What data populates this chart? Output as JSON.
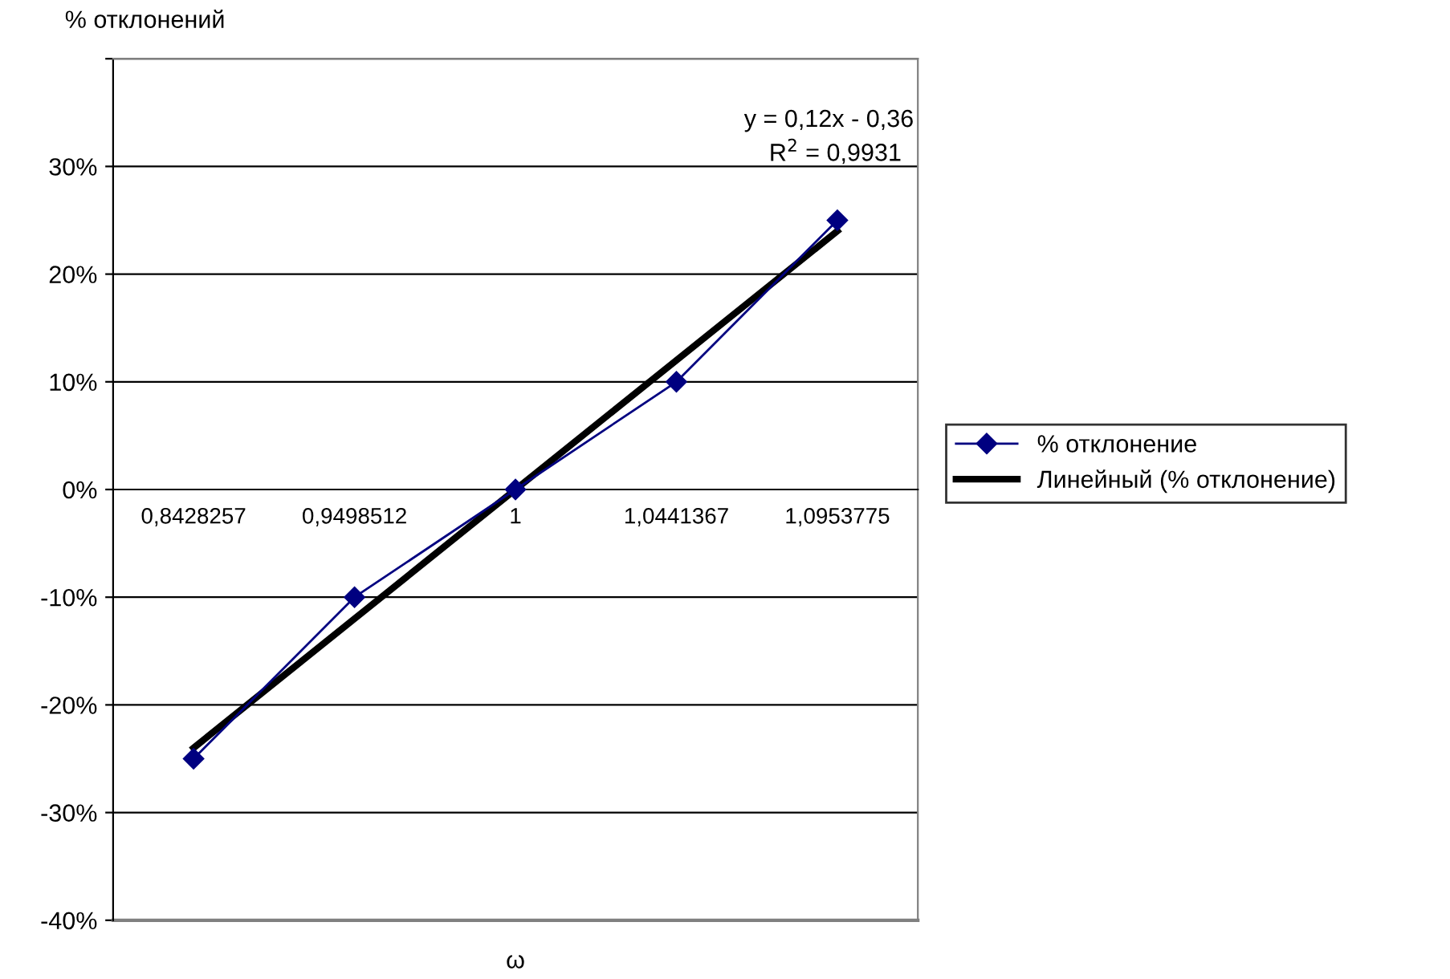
{
  "chart_data": {
    "type": "line",
    "xlabel": "ω",
    "ylabel": "% отклонений",
    "categories": [
      "0,8428257",
      "0,9498512",
      "1",
      "1,0441367",
      "1,0953775"
    ],
    "series": [
      {
        "name": "% отклонение",
        "color": "#000080",
        "values": [
          -25,
          -10,
          0,
          10,
          25
        ],
        "marker": "diamond",
        "line_style": "solid"
      },
      {
        "name": "Линейный (% отклонение)",
        "color": "#000000",
        "type": "line",
        "values": [
          -24,
          -12,
          0,
          12,
          24
        ],
        "marker": "none",
        "line_style": "solid"
      }
    ],
    "ylim": [
      -40,
      40
    ],
    "yticks": [
      {
        "value": -40,
        "label": "-40%"
      },
      {
        "value": -30,
        "label": "-30%"
      },
      {
        "value": -20,
        "label": "-20%"
      },
      {
        "value": -10,
        "label": "-10%"
      },
      {
        "value": 0,
        "label": "0%"
      },
      {
        "value": 10,
        "label": "10%"
      },
      {
        "value": 20,
        "label": "20%"
      },
      {
        "value": 30,
        "label": "30%"
      },
      {
        "value": 40,
        "label": null
      }
    ],
    "grid": "y",
    "legend": "right",
    "annotations": [
      "y = 0,12x - 0,36",
      "R$^{2}$ = 0,9931"
    ]
  }
}
